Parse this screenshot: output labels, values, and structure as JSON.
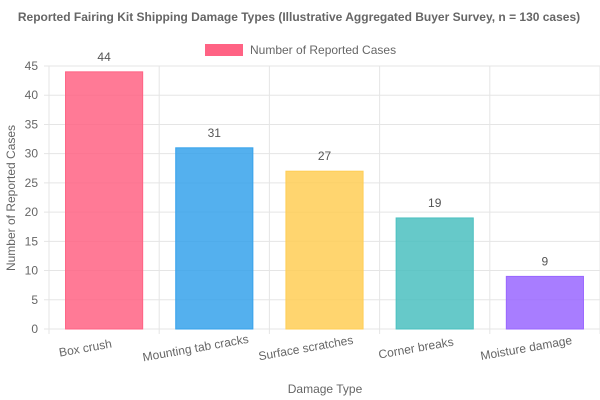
{
  "chart_data": {
    "type": "bar",
    "title": "Reported Fairing Kit Shipping Damage Types (Illustrative Aggregated Buyer Survey, n = 130 cases)",
    "xlabel": "Damage Type",
    "ylabel": "Number of Reported Cases",
    "ylim": [
      0,
      45
    ],
    "yticks": [
      0,
      5,
      10,
      15,
      20,
      25,
      30,
      35,
      40,
      45
    ],
    "grid": true,
    "legend_position": "top",
    "categories": [
      "Box crush",
      "Mounting tab cracks",
      "Surface scratches",
      "Corner breaks",
      "Moisture damage"
    ],
    "series": [
      {
        "name": "Number of Reported Cases",
        "values": [
          44,
          31,
          27,
          19,
          9
        ],
        "colors": [
          "#ff6384",
          "#36a2eb",
          "#ffce56",
          "#4bc0c0",
          "#9966ff"
        ],
        "legend_color": "#ff6384"
      }
    ]
  }
}
